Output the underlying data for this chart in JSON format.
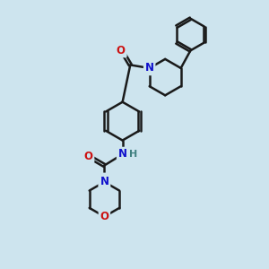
{
  "bg_color": "#cde4ee",
  "bond_color": "#1a1a1a",
  "bond_width": 1.8,
  "atom_colors": {
    "N": "#1010cc",
    "O": "#cc1010",
    "H": "#408080",
    "C": "#1a1a1a"
  },
  "font_size_atom": 8.5,
  "fig_size": [
    3.0,
    3.0
  ],
  "dpi": 100
}
